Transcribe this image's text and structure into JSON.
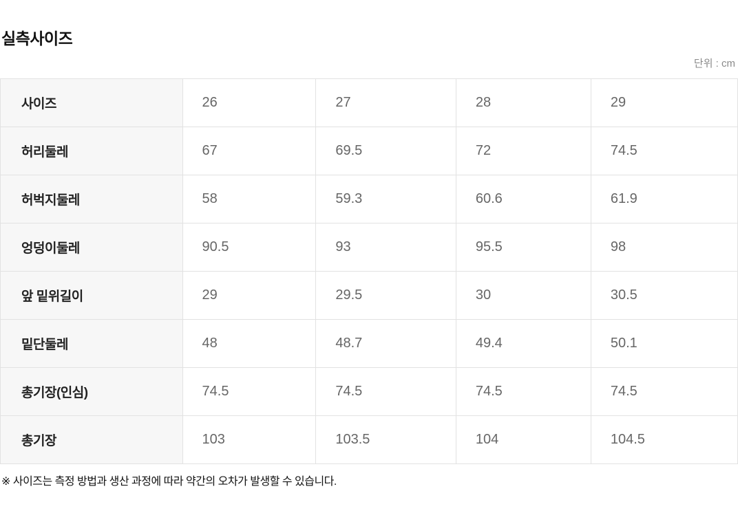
{
  "page": {
    "title": "실측사이즈",
    "unit_label": "단위 : cm",
    "footnote": "※ 사이즈는 측정 방법과 생산 과정에 따라 약간의 오차가 발생할 수 있습니다."
  },
  "size_table": {
    "unit": "cm",
    "rows": [
      {
        "label": "사이즈",
        "values": [
          "26",
          "27",
          "28",
          "29"
        ]
      },
      {
        "label": "허리둘레",
        "values": [
          "67",
          "69.5",
          "72",
          "74.5"
        ]
      },
      {
        "label": "허벅지둘레",
        "values": [
          "58",
          "59.3",
          "60.6",
          "61.9"
        ]
      },
      {
        "label": "엉덩이둘레",
        "values": [
          "90.5",
          "93",
          "95.5",
          "98"
        ]
      },
      {
        "label": "앞 밑위길이",
        "values": [
          "29",
          "29.5",
          "30",
          "30.5"
        ]
      },
      {
        "label": "밑단둘레",
        "values": [
          "48",
          "48.7",
          "49.4",
          "50.1"
        ]
      },
      {
        "label": "총기장(인심)",
        "values": [
          "74.5",
          "74.5",
          "74.5",
          "74.5"
        ]
      },
      {
        "label": "총기장",
        "values": [
          "103",
          "103.5",
          "104",
          "104.5"
        ]
      }
    ]
  },
  "colors": {
    "title_text": "#111111",
    "unit_text": "#8a8a8a",
    "row_label_bg": "#f7f7f7",
    "row_label_text": "#222222",
    "value_text": "#666666",
    "border": "#e2e2e2",
    "footnote_text": "#111111",
    "page_bg": "#ffffff"
  }
}
